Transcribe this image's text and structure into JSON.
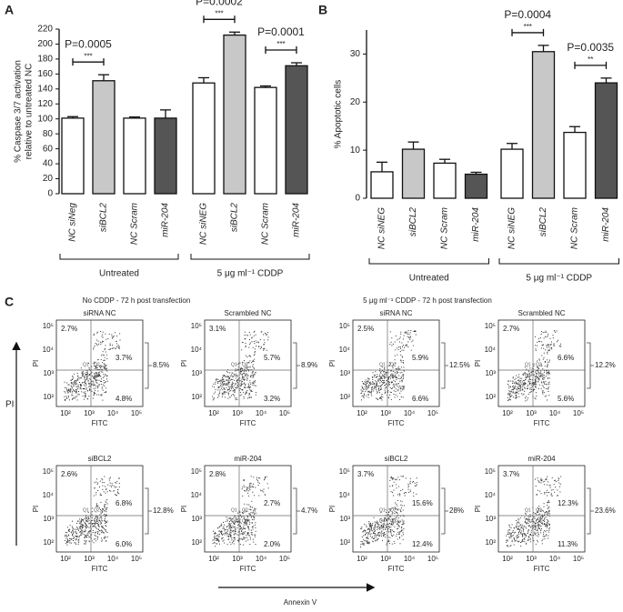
{
  "chart_data": [
    {
      "type": "bar",
      "panel": "A",
      "ylabel": [
        "% Caspase 3/7 activation",
        "relative to untreated NC"
      ],
      "categories": [
        "NC siNeg",
        "siBCL2",
        "NC Scram",
        "miR-204",
        "NC siNEG",
        "siBCL2",
        "NC Scram",
        "miR-204"
      ],
      "values": [
        101,
        151,
        101,
        101,
        148,
        212,
        142,
        171
      ],
      "errors": [
        2,
        8,
        1.5,
        11,
        7,
        4,
        2,
        4
      ],
      "colors": [
        "#ffffff",
        "#c8c8c8",
        "#ffffff",
        "#555555",
        "#ffffff",
        "#c8c8c8",
        "#ffffff",
        "#555555"
      ],
      "ylim": [
        0,
        220
      ],
      "yticks": [
        0,
        20,
        40,
        60,
        80,
        100,
        120,
        140,
        160,
        180,
        200,
        220
      ],
      "groups": [
        "Untreated",
        "5 μg ml⁻¹ CDDP"
      ],
      "annotations": [
        {
          "text": "P=0.0005",
          "stars": "***"
        },
        {
          "text": "P=0.0002",
          "stars": "***"
        },
        {
          "text": "P=0.0001",
          "stars": "***"
        }
      ]
    },
    {
      "type": "bar",
      "panel": "B",
      "ylabel": [
        "% Apoptotic cells"
      ],
      "categories": [
        "NC siNEG",
        "siBCL2",
        "NC Scram",
        "miR-204",
        "NC siNEG",
        "siBCL2",
        "NC Scram",
        "miR-204"
      ],
      "values": [
        5.5,
        10.2,
        7.3,
        5.0,
        10.2,
        30.5,
        13.7,
        24.0
      ],
      "errors": [
        2,
        1.5,
        0.8,
        0.4,
        1.2,
        1.3,
        1.2,
        1.0
      ],
      "colors": [
        "#ffffff",
        "#c8c8c8",
        "#ffffff",
        "#555555",
        "#ffffff",
        "#c8c8c8",
        "#ffffff",
        "#555555"
      ],
      "ylim": [
        0,
        35
      ],
      "yticks": [
        0,
        10,
        20,
        30
      ],
      "groups": [
        "Untreated",
        "5 μg ml⁻¹ CDDP"
      ],
      "annotations": [
        {
          "text": "P=0.0004",
          "stars": "***"
        },
        {
          "text": "P=0.0035",
          "stars": "**"
        }
      ]
    }
  ],
  "flow": {
    "panel": "C",
    "titles": [
      "No CDDP - 72 h post transfection",
      "5 μg ml⁻¹ CDDP - 72 h post transfection"
    ],
    "axis_ticks": [
      "10²",
      "10³",
      "10⁴",
      "10⁵"
    ],
    "x_label": "FITC",
    "y_label": "PI",
    "quadrant_names": [
      "Q1",
      "Q2",
      "Q3",
      "Q4"
    ],
    "big_y_label": "PI",
    "big_x_label": "Annexin V",
    "plots": [
      {
        "name": "siRNA NC",
        "ul": "2.7%",
        "ur": "3.7%",
        "lr": "4.8%",
        "total": "8.5%"
      },
      {
        "name": "Scrambled NC",
        "ul": "3.1%",
        "ur": "5.7%",
        "lr": "3.2%",
        "total": "8.9%"
      },
      {
        "name": "siRNA NC",
        "ul": "2.5%",
        "ur": "5.9%",
        "lr": "6.6%",
        "total": "12.5%"
      },
      {
        "name": "Scrambled NC",
        "ul": "2.7%",
        "ur": "6.6%",
        "lr": "5.6%",
        "total": "12.2%"
      },
      {
        "name": "siBCL2",
        "ul": "2.6%",
        "ur": "6.8%",
        "lr": "6.0%",
        "total": "12.8%"
      },
      {
        "name": "miR-204",
        "ul": "2.8%",
        "ur": "2.7%",
        "lr": "2.0%",
        "total": "4.7%"
      },
      {
        "name": "siBCL2",
        "ul": "3.7%",
        "ur": "15.6%",
        "lr": "12.4%",
        "total": "28%"
      },
      {
        "name": "miR-204",
        "ul": "3.7%",
        "ur": "12.3%",
        "lr": "11.3%",
        "total": "23.6%"
      }
    ]
  }
}
